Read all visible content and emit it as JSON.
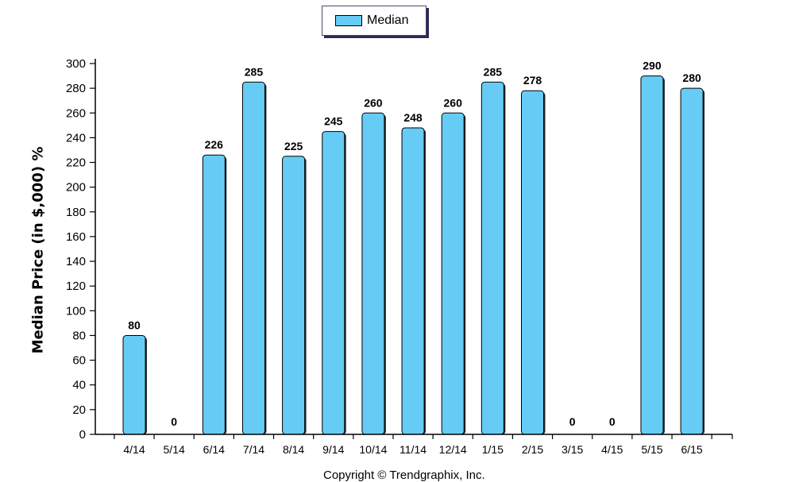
{
  "legend": {
    "label": "Median",
    "color": "#66ccf5"
  },
  "copyright": "Copyright © Trendgraphix, Inc.",
  "chart_data": {
    "type": "bar",
    "categories": [
      "4/14",
      "5/14",
      "6/14",
      "7/14",
      "8/14",
      "9/14",
      "10/14",
      "11/14",
      "12/14",
      "1/15",
      "2/15",
      "3/15",
      "4/15",
      "5/15",
      "6/15"
    ],
    "series": [
      {
        "name": "Median",
        "values": [
          80,
          0,
          226,
          285,
          225,
          245,
          260,
          248,
          260,
          285,
          278,
          0,
          0,
          290,
          280
        ]
      }
    ],
    "ylabel": "Median Price (in $,000) %",
    "xlabel": "",
    "ylim": [
      0,
      300
    ],
    "yticks": [
      0,
      20,
      40,
      60,
      80,
      100,
      120,
      140,
      160,
      180,
      200,
      220,
      240,
      260,
      280,
      300
    ],
    "bar_color": "#66ccf5",
    "grid": false,
    "legend_position": "top-center"
  }
}
